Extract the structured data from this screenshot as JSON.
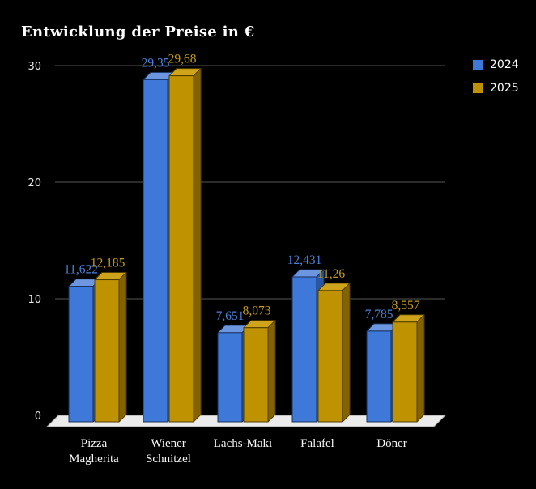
{
  "window": {
    "background": "#000000"
  },
  "chart_data": {
    "type": "bar",
    "style": "3d-column",
    "title": "Entwicklung der Preise in €",
    "categories": [
      "Pizza Magherita",
      "Wiener Schnitzel",
      "Lachs-Maki",
      "Falafel",
      "Döner"
    ],
    "series": [
      {
        "name": "2024",
        "values": [
          11.622,
          29.35,
          7.651,
          12.431,
          7.785
        ],
        "labels": [
          "11,622",
          "29,35",
          "7,651",
          "12,431",
          "7,785"
        ],
        "colors": {
          "front": "#3e78d8",
          "top": "#6d96e0",
          "side": "#2a57a5",
          "outline": "#16315f",
          "label": "#4a80d6"
        }
      },
      {
        "name": "2025",
        "values": [
          12.185,
          29.68,
          8.073,
          11.26,
          8.557
        ],
        "labels": [
          "12,185",
          "29,68",
          "8,073",
          "11,26",
          "8,557"
        ],
        "colors": {
          "front": "#bf9202",
          "top": "#d0a41a",
          "side": "#826300",
          "outline": "#4f3d00",
          "label": "#c59c17"
        }
      }
    ],
    "ylim": [
      0,
      30
    ],
    "yticks": [
      0,
      10,
      20,
      30
    ],
    "grid": true,
    "legend_position": "top-right",
    "axis_label_color": "#e8e8e8",
    "category_label_color": "#f5f5f5",
    "gridline_color": "#565656",
    "floor_color": "#ebebeb",
    "floor_outline_color": "#9a9a9a"
  }
}
